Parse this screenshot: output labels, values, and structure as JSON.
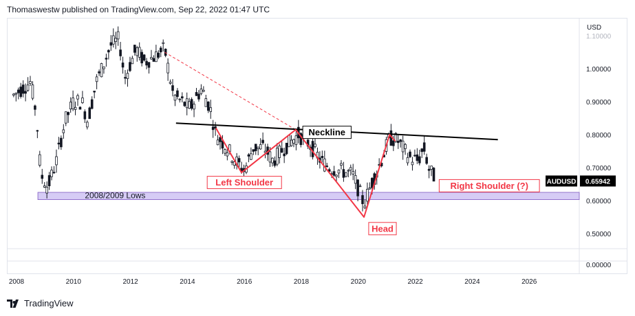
{
  "header": {
    "text": "Thomaswestw published on TradingView.com, Sep 22, 2022 01:47 UTC"
  },
  "footer": {
    "brand": "TradingView"
  },
  "colors": {
    "candle": "#131722",
    "pattern": "#f23645",
    "trend": "#f23645",
    "neckline": "#000000",
    "support_band": "#d6ccf5",
    "support_border": "#7e57c2",
    "price_label_bg": "#000000"
  },
  "chart_data": {
    "type": "candlestick",
    "symbol": "AUDUSD",
    "last_price": "0.65942",
    "currency": "USD",
    "x_range": [
      2008,
      2028
    ],
    "x_ticks": [
      "2008",
      "2010",
      "2012",
      "2014",
      "2016",
      "2018",
      "2020",
      "2022",
      "2024",
      "2026"
    ],
    "ylim": [
      0.44,
      1.15
    ],
    "y_ticks": [
      "1.00000",
      "0.90000",
      "0.80000",
      "0.70000",
      "0.60000",
      "0.50000"
    ],
    "lower_pane_ticks": [
      "0.00000"
    ],
    "price_path": [
      [
        2007.9,
        0.92
      ],
      [
        2008.2,
        0.94
      ],
      [
        2008.5,
        0.96
      ],
      [
        2008.7,
        0.86
      ],
      [
        2008.85,
        0.68
      ],
      [
        2009.1,
        0.64
      ],
      [
        2009.4,
        0.72
      ],
      [
        2009.7,
        0.84
      ],
      [
        2010.0,
        0.9
      ],
      [
        2010.3,
        0.9
      ],
      [
        2010.5,
        0.84
      ],
      [
        2010.8,
        0.96
      ],
      [
        2011.0,
        1.0
      ],
      [
        2011.3,
        1.07
      ],
      [
        2011.6,
        1.09
      ],
      [
        2011.8,
        0.97
      ],
      [
        2012.2,
        1.06
      ],
      [
        2012.5,
        1.02
      ],
      [
        2012.9,
        1.04
      ],
      [
        2013.2,
        1.06
      ],
      [
        2013.5,
        0.92
      ],
      [
        2013.8,
        0.9
      ],
      [
        2014.1,
        0.88
      ],
      [
        2014.5,
        0.94
      ],
      [
        2014.8,
        0.88
      ],
      [
        2015.0,
        0.8
      ],
      [
        2015.3,
        0.77
      ],
      [
        2015.7,
        0.72
      ],
      [
        2016.0,
        0.69
      ],
      [
        2016.3,
        0.76
      ],
      [
        2016.7,
        0.76
      ],
      [
        2017.0,
        0.72
      ],
      [
        2017.4,
        0.76
      ],
      [
        2017.9,
        0.8
      ],
      [
        2018.3,
        0.77
      ],
      [
        2018.7,
        0.72
      ],
      [
        2019.0,
        0.7
      ],
      [
        2019.4,
        0.69
      ],
      [
        2019.8,
        0.68
      ],
      [
        2020.2,
        0.59
      ],
      [
        2020.5,
        0.66
      ],
      [
        2020.8,
        0.72
      ],
      [
        2021.1,
        0.79
      ],
      [
        2021.4,
        0.78
      ],
      [
        2021.8,
        0.73
      ],
      [
        2022.1,
        0.72
      ],
      [
        2022.3,
        0.76
      ],
      [
        2022.5,
        0.69
      ],
      [
        2022.7,
        0.67
      ],
      [
        2022.72,
        0.659
      ]
    ],
    "pattern_line": [
      [
        2015.0,
        0.82
      ],
      [
        2015.9,
        0.685
      ],
      [
        2017.8,
        0.815
      ],
      [
        2020.2,
        0.55
      ],
      [
        2021.1,
        0.8
      ],
      [
        2021.3,
        0.78
      ]
    ],
    "dashed_trend": [
      [
        2013.2,
        1.05
      ],
      [
        2017.8,
        0.815
      ]
    ],
    "neckline": [
      [
        2013.6,
        0.835
      ],
      [
        2024.9,
        0.785
      ]
    ],
    "support_band": {
      "label": "2008/2009 Lows",
      "from": 0.603,
      "to": 0.625,
      "x_start": 2008.75
    },
    "annotations": [
      {
        "text": "Left Shoulder",
        "x": 2016.0,
        "y": 0.655,
        "style": "red-box"
      },
      {
        "text": "Neckline",
        "x": 2018.9,
        "y": 0.807,
        "style": "black-box"
      },
      {
        "text": "Head",
        "x": 2020.85,
        "y": 0.515,
        "style": "red-box"
      },
      {
        "text": "Right Shoulder (?)",
        "x": 2024.6,
        "y": 0.645,
        "style": "red-box"
      }
    ]
  }
}
